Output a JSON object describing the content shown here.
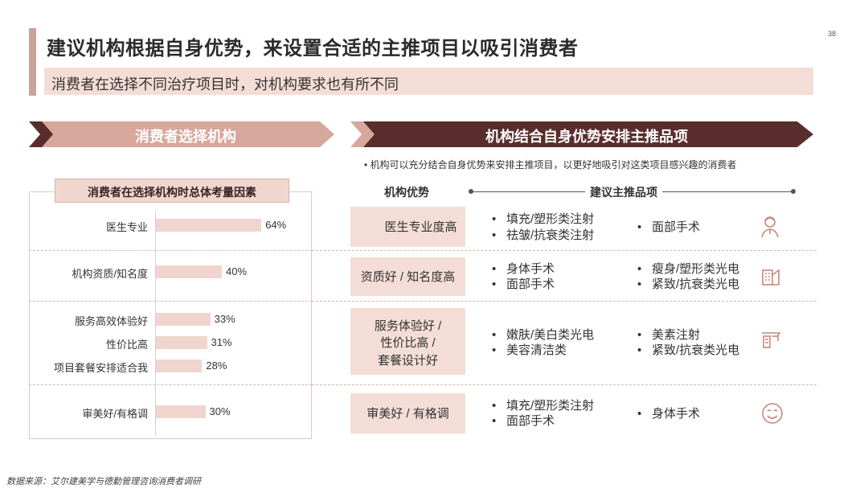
{
  "header": {
    "title": "建议机构根据自身优势，来设置合适的主推项目以吸引消费者",
    "subtitle": "消费者在选择不同治疗项目时，对机构要求也有所不同",
    "page_number": "38"
  },
  "left_panel": {
    "chevron_title": "消费者选择机构",
    "factor_title": "消费者在选择机构时总体考量因素"
  },
  "right_panel": {
    "chevron_title": "机构结合自身优势安排主推品项",
    "note": "•  机构可以充分结合自身优势来安排主推项目，以更好地吸引对这类项目感兴趣的消费者",
    "col_advantage": "机构优势",
    "col_recommend": "建议主推品项",
    "rows": [
      {
        "advantage": "医生专业度高",
        "col1": [
          "填充/塑形类注射",
          "祛皱/抗衰类注射"
        ],
        "col2": [
          "面部手术"
        ],
        "icon": "doctor-icon"
      },
      {
        "advantage": "资质好 / 知名度高",
        "col1": [
          "身体手术",
          "面部手术"
        ],
        "col2": [
          "瘦身/塑形类光电",
          "紧致/抗衰类光电"
        ],
        "icon": "building-icon"
      },
      {
        "advantage": "服务体验好 / 性价比高 / 套餐设计好",
        "advantage_lines": [
          "服务体验好 /",
          "性价比高 /",
          "套餐设计好"
        ],
        "col1": [
          "嫩肤/美白类光电",
          "美容清洁类"
        ],
        "col2": [
          "美素注射",
          "紧致/抗衰类光电"
        ],
        "icon": "service-icon"
      },
      {
        "advantage": "审美好 / 有格调",
        "col1": [
          "填充/塑形类注射",
          "面部手术"
        ],
        "col2": [
          "身体手术"
        ],
        "icon": "smile-face-icon"
      }
    ]
  },
  "footer": {
    "source": "数据来源：艾尔建美学与德勤管理咨询消费者调研"
  },
  "colors": {
    "dark_chevron": "#5a2d2d",
    "light_chevron": "#d8a79c",
    "bar": "#f0d5ce",
    "panel_fill": "#f4ddd6"
  },
  "chart_data": {
    "type": "bar",
    "orientation": "horizontal",
    "title": "消费者在选择机构时总体考量因素",
    "categories": [
      "医生专业",
      "机构资质/知名度",
      "服务高效体验好",
      "性价比高",
      "项目套餐安排适合我",
      "审美好/有格调"
    ],
    "values": [
      64,
      40,
      33,
      31,
      28,
      30
    ],
    "value_labels": [
      "64%",
      "40%",
      "33%",
      "31%",
      "28%",
      "30%"
    ],
    "unit": "%",
    "xlim": [
      0,
      100
    ],
    "grid": false
  }
}
